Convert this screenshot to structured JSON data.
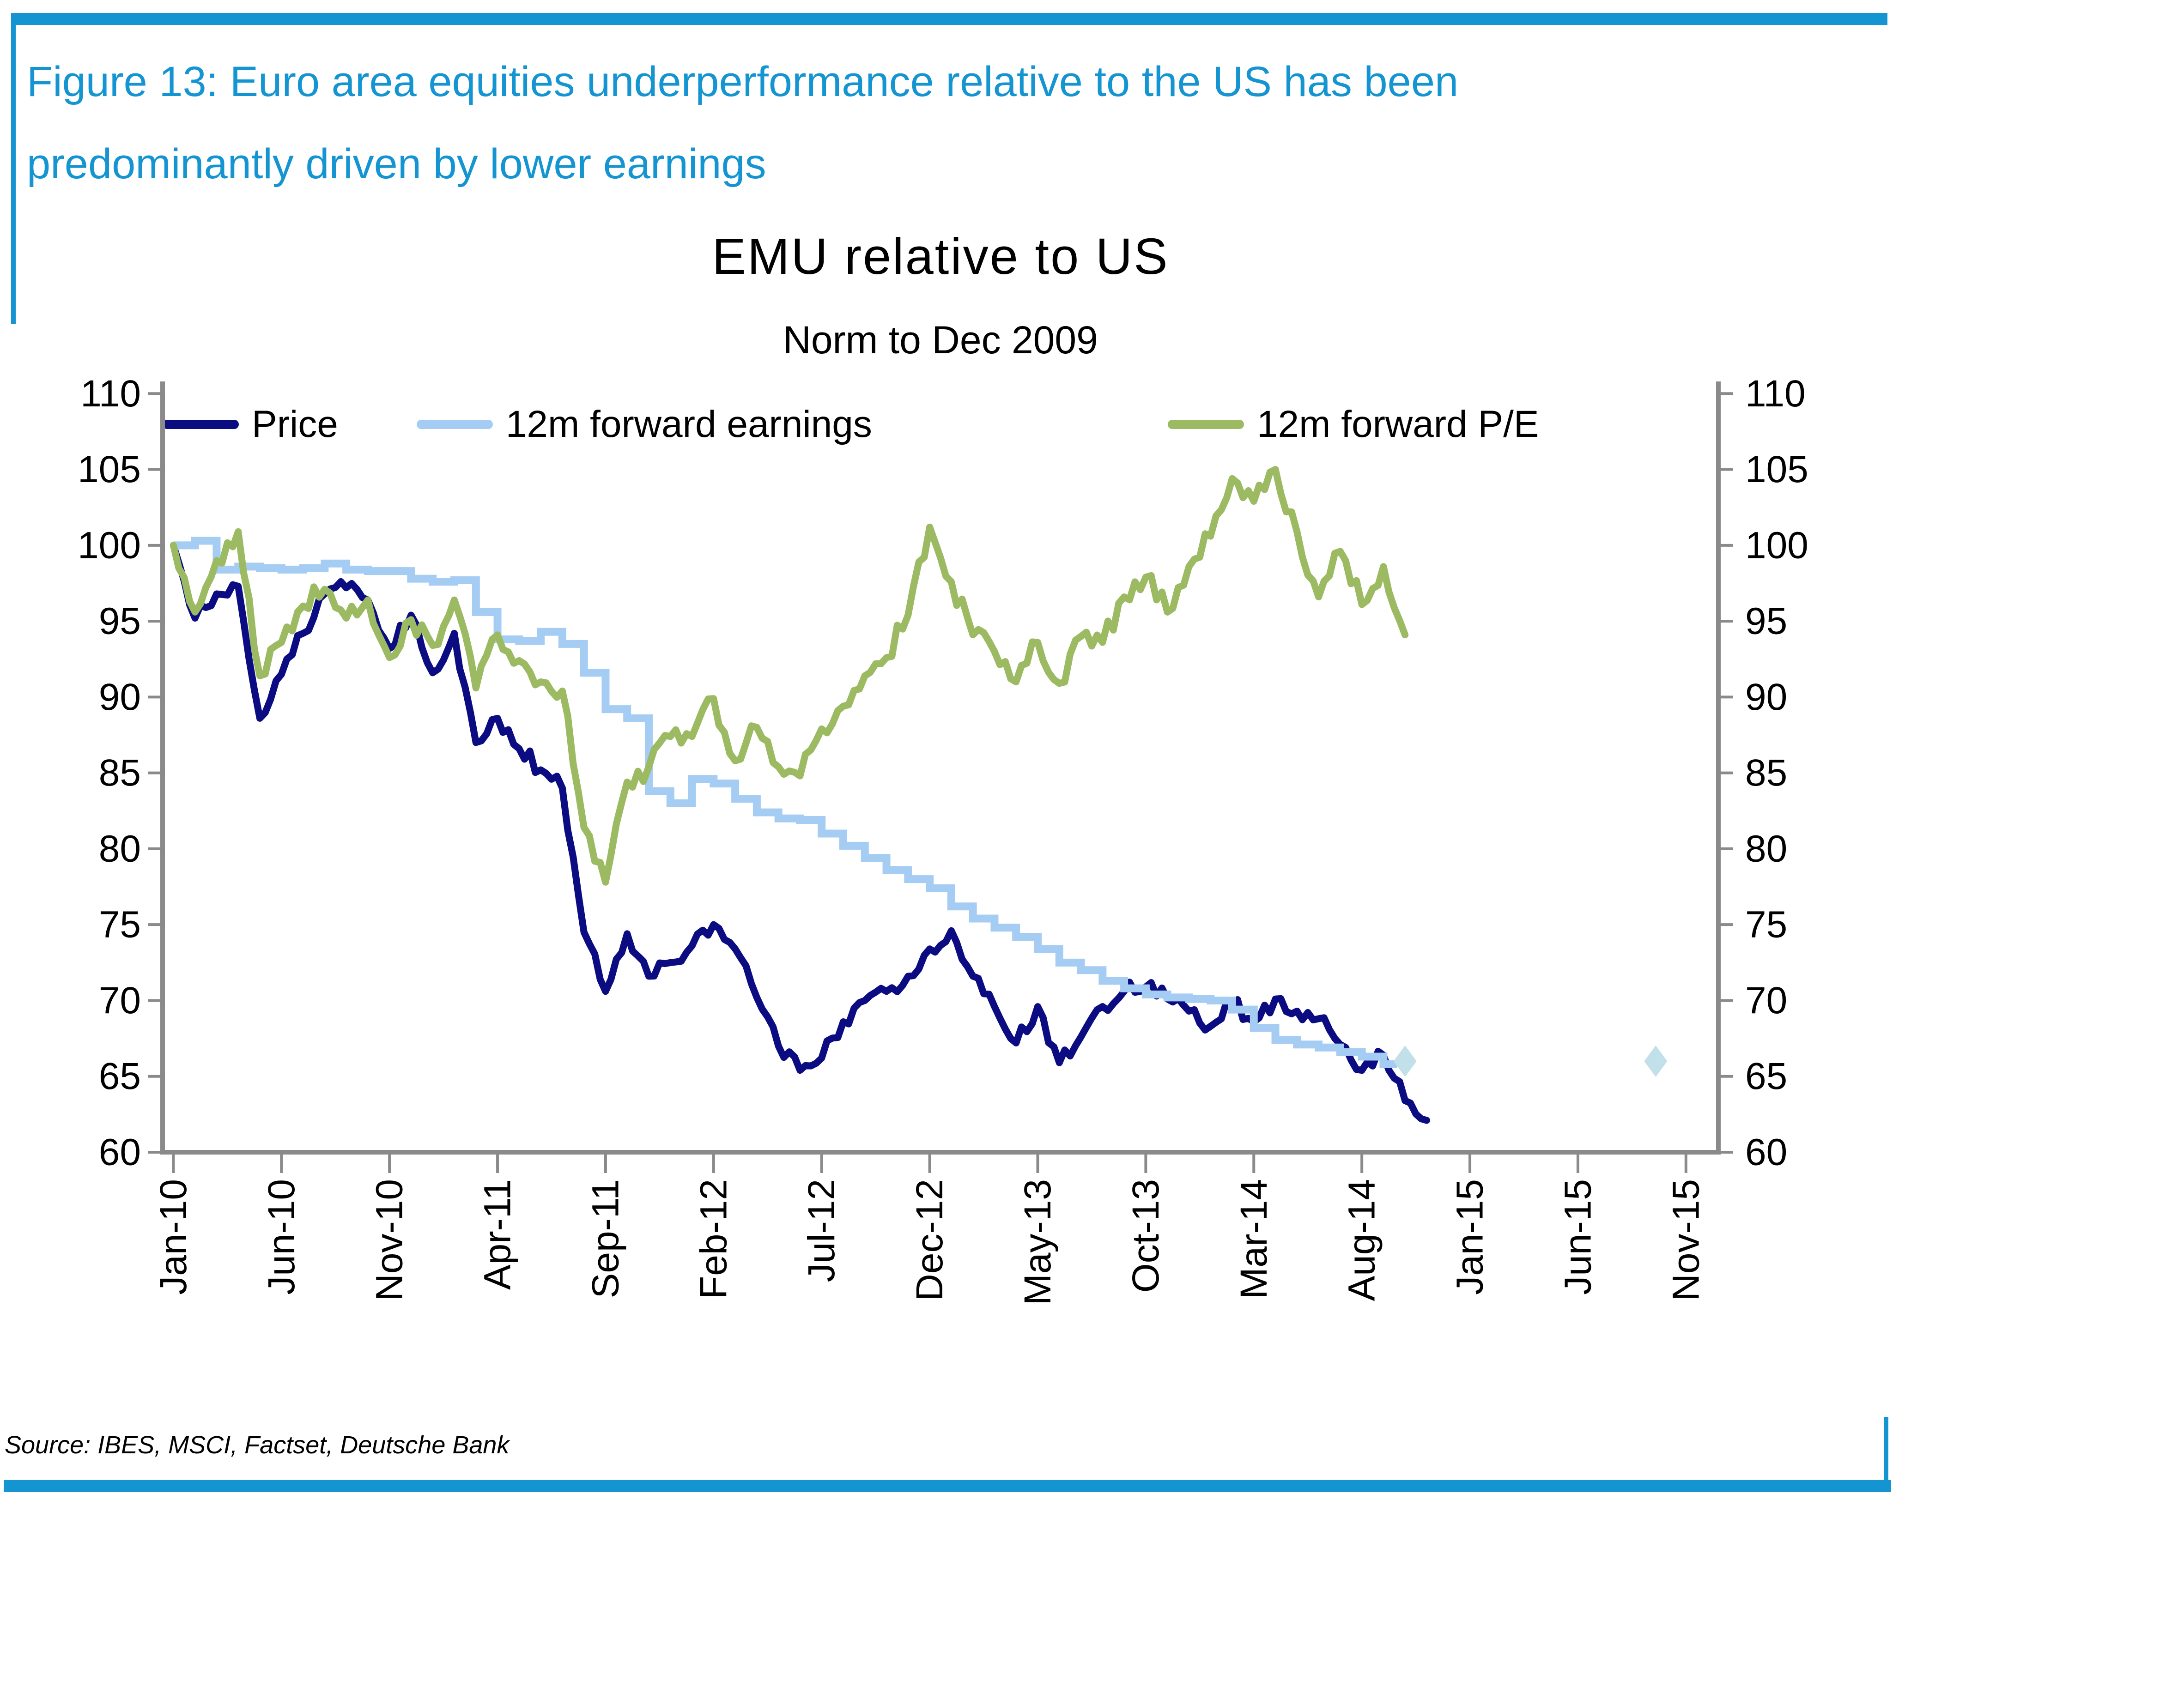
{
  "header": {
    "accent_color": "#1495D2",
    "title_line1": "Figure 13: Euro area equities underperformance relative to the US has been",
    "title_line2": "predominantly driven by lower earnings"
  },
  "chart": {
    "title": "EMU relative to US",
    "subtitle": "Norm to Dec 2009"
  },
  "chart_data": {
    "type": "line",
    "title": "EMU relative to US",
    "subtitle": "Norm to Dec 2009",
    "grid": false,
    "legend_position": "top",
    "axis_color": "#8A8A8A",
    "ylim": [
      60,
      110.8
    ],
    "yticks": [
      60,
      65,
      70,
      75,
      80,
      85,
      90,
      95,
      100,
      105,
      110
    ],
    "x_unit": "month index from Jan-2010",
    "x_domain_months": [
      -0.5,
      71.5
    ],
    "x_tick_months": [
      0,
      5,
      10,
      15,
      20,
      25,
      30,
      35,
      40,
      45,
      50,
      55,
      60,
      65,
      70
    ],
    "x_tick_labels": [
      "Jan-10",
      "Jun-10",
      "Nov-10",
      "Apr-11",
      "Sep-11",
      "Feb-12",
      "Jul-12",
      "Dec-12",
      "May-13",
      "Oct-13",
      "Mar-14",
      "Aug-14",
      "Jan-15",
      "Jun-15",
      "Nov-15"
    ],
    "series": [
      {
        "name": "Price",
        "type": "line",
        "color": "#0B0B82",
        "stroke_width": 15,
        "noise": 0.55,
        "start_month": 0,
        "in_legend": true,
        "values": [
          100,
          95.2,
          96.8,
          97.3,
          88.6,
          91.5,
          94.2,
          96.8,
          97.2,
          96.4,
          93.2,
          95.4,
          91.6,
          94.2,
          87.0,
          88.6,
          86.6,
          85.2,
          84.0,
          74.5,
          70.6,
          74.4,
          71.6,
          72.5,
          73.6,
          75.0,
          73.4,
          70.2,
          67.0,
          65.4,
          66.2,
          68.6,
          70.0,
          70.6,
          71.6,
          73.4,
          74.6,
          71.6,
          69.6,
          67.2,
          69.6,
          65.9,
          67.6,
          69.6,
          70.6,
          70.9,
          70.1,
          69.3,
          68.3,
          69.9,
          68.6,
          70.1,
          69.3,
          68.8,
          67.1,
          65.4,
          66.4,
          63.4,
          62.1
        ]
      },
      {
        "name": "12m forward earnings",
        "type": "step",
        "color": "#A5CCF2",
        "stroke_width": 17,
        "noise": 0,
        "start_month": 0,
        "in_legend": true,
        "values": [
          100,
          100.3,
          98.4,
          98.6,
          98.5,
          98.4,
          98.5,
          98.8,
          98.4,
          98.3,
          98.3,
          97.8,
          97.6,
          97.7,
          95.6,
          93.8,
          93.7,
          94.3,
          93.5,
          91.6,
          89.2,
          88.6,
          83.8,
          83.0,
          84.6,
          84.3,
          83.3,
          82.4,
          82.0,
          81.9,
          81.0,
          80.2,
          79.4,
          78.6,
          78.0,
          77.4,
          76.2,
          75.4,
          74.8,
          74.2,
          73.4,
          72.5,
          72.0,
          71.3,
          70.8,
          70.4,
          70.2,
          70.1,
          70.0,
          69.4,
          68.2,
          67.4,
          67.1,
          66.9,
          66.6,
          66.3,
          65.8
        ]
      },
      {
        "name": "12m forward P/E",
        "type": "line",
        "color": "#9CBA62",
        "stroke_width": 15,
        "noise": 0.75,
        "start_month": 0,
        "in_legend": true,
        "values": [
          100,
          95.6,
          99.0,
          100.9,
          91.4,
          93.6,
          96.0,
          97.1,
          95.2,
          96.4,
          92.6,
          95.1,
          93.4,
          96.4,
          90.6,
          94.1,
          92.4,
          91.0,
          90.4,
          81.4,
          77.8,
          84.4,
          85.4,
          87.4,
          87.4,
          89.9,
          85.8,
          88.0,
          85.4,
          84.8,
          87.9,
          89.4,
          91.4,
          92.6,
          95.4,
          101.2,
          97.6,
          94.1,
          93.0,
          91.0,
          93.6,
          90.9,
          94.0,
          93.6,
          96.6,
          97.9,
          95.6,
          98.6,
          100.6,
          104.4,
          102.9,
          105.0,
          100.9,
          96.6,
          99.6,
          96.1,
          98.6,
          94.1
        ]
      },
      {
        "name": "earnings estimate markers",
        "type": "scatter",
        "marker": "diamond",
        "color": "#C2E0E9",
        "in_legend": false,
        "points": [
          [
            57,
            66
          ],
          [
            68.6,
            66
          ]
        ]
      }
    ]
  },
  "footer": {
    "source": "Source: IBES, MSCI, Factset, Deutsche Bank"
  }
}
